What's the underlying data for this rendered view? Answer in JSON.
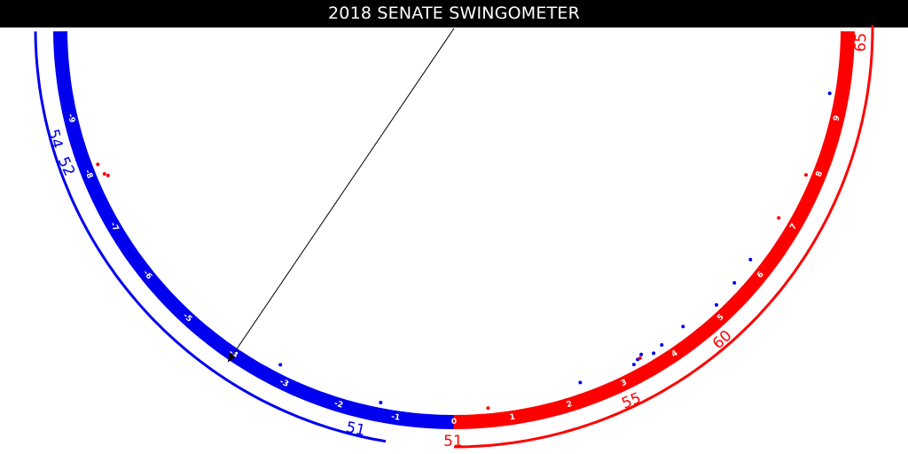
{
  "title": "2018 SENATE SWINGOMETER",
  "colors": {
    "dem": "#0000ee",
    "rep": "#ff0000",
    "pointer": "#000000",
    "title_bg": "#000000",
    "title_text": "#ffffff"
  },
  "swing_ticks": [
    "-9",
    "-8",
    "-7",
    "-6",
    "-5",
    "-4",
    "-3",
    "-2",
    "-1",
    "0",
    "1",
    "2",
    "3",
    "4",
    "5",
    "6",
    "7",
    "8",
    "9"
  ],
  "pointer_value": -4,
  "dem_seat_labels": [
    "54",
    "52",
    "51"
  ],
  "rep_seat_labels": [
    "51",
    "55",
    "60",
    "65"
  ],
  "races": {
    "dem_held": [
      -1.3,
      -3.2,
      2.3,
      3.3,
      3.4,
      3.5,
      3.7,
      3.9,
      4.4,
      5.1,
      5.6,
      6.1,
      9.4
    ],
    "rep_held": [
      -8.1,
      -7.9,
      -7.85,
      0.6,
      3.45,
      7.0,
      7.9
    ]
  }
}
